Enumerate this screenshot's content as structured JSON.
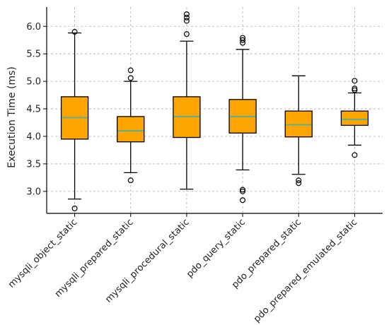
{
  "chart_data": {
    "type": "box",
    "title": "",
    "xlabel": "",
    "ylabel": "Execution Time (ms)",
    "ylim": [
      2.6,
      6.35
    ],
    "yticks": [
      3.0,
      3.5,
      4.0,
      4.5,
      5.0,
      5.5,
      6.0
    ],
    "ytick_labels": [
      "3.0",
      "3.5",
      "4.0",
      "4.5",
      "5.0",
      "5.5",
      "6.0"
    ],
    "grid": true,
    "colors": {
      "box_fill": "#FFA500",
      "median": "#4CB3A0",
      "edge": "#000000"
    },
    "categories": [
      "mysqli_object_static",
      "mysqli_prepared_static",
      "mysqli_procedural_static",
      "pdo_query_static",
      "pdo_prepared_static",
      "pdo_prepared_emulated_static"
    ],
    "boxes": [
      {
        "whisker_low": 2.86,
        "q1": 3.95,
        "median": 4.34,
        "q3": 4.72,
        "whisker_high": 5.88,
        "fliers": [
          2.69,
          5.9
        ]
      },
      {
        "whisker_low": 3.34,
        "q1": 3.9,
        "median": 4.1,
        "q3": 4.36,
        "whisker_high": 5.0,
        "fliers": [
          3.2,
          5.06,
          5.2
        ]
      },
      {
        "whisker_low": 3.04,
        "q1": 3.98,
        "median": 4.36,
        "q3": 4.72,
        "whisker_high": 5.73,
        "fliers": [
          5.86,
          6.1,
          6.16,
          6.22
        ]
      },
      {
        "whisker_low": 3.39,
        "q1": 4.06,
        "median": 4.36,
        "q3": 4.67,
        "whisker_high": 5.58,
        "fliers": [
          2.84,
          3.0,
          3.03,
          5.7,
          5.75,
          5.79
        ]
      },
      {
        "whisker_low": 3.31,
        "q1": 3.99,
        "median": 4.21,
        "q3": 4.46,
        "whisker_high": 5.1,
        "fliers": [
          3.15,
          3.2
        ]
      },
      {
        "whisker_low": 3.84,
        "q1": 4.2,
        "median": 4.31,
        "q3": 4.46,
        "whisker_high": 4.79,
        "fliers": [
          3.66,
          4.84,
          4.87,
          5.01
        ]
      }
    ]
  }
}
